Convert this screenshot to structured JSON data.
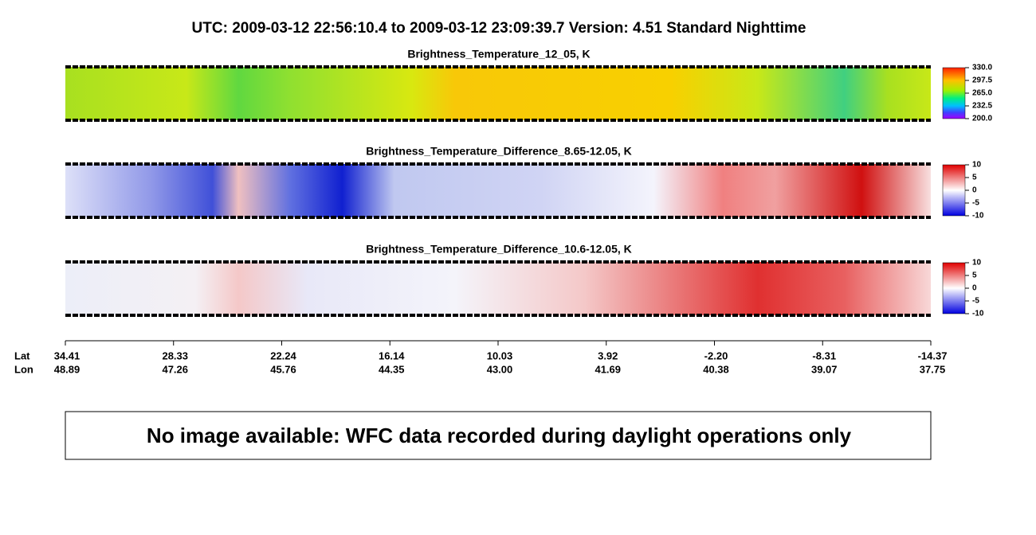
{
  "header": {
    "title": "UTC:  2009-03-12   22:56:10.4  to  2009-03-12   23:09:39.7    Version: 4.51  Standard Nighttime"
  },
  "panels": [
    {
      "title": "Brightness_Temperature_12_05, K",
      "colorbar": {
        "lim": [
          200,
          330
        ],
        "ticks": [
          {
            "value": 330,
            "label": "330.0"
          },
          {
            "value": 297.5,
            "label": "297.5"
          },
          {
            "value": 265,
            "label": "265.0"
          },
          {
            "value": 232.5,
            "label": "232.5"
          },
          {
            "value": 200,
            "label": "200.0"
          }
        ]
      }
    },
    {
      "title": "Brightness_Temperature_Difference_8.65-12.05, K",
      "colorbar": {
        "lim": [
          -10,
          10
        ],
        "ticks": [
          10,
          5,
          0,
          -5,
          -10
        ]
      }
    },
    {
      "title": "Brightness_Temperature_Difference_10.6-12.05, K",
      "colorbar": {
        "lim": [
          -10,
          10
        ],
        "ticks": [
          10,
          5,
          0,
          -5,
          -10
        ]
      }
    }
  ],
  "axis": {
    "lat_label": "Lat",
    "lon_label": "Lon",
    "lat": [
      34.41,
      28.33,
      22.24,
      16.14,
      10.03,
      3.92,
      {
        "value": -2.2,
        "label": "-2.20"
      },
      -8.31,
      -14.37
    ],
    "lon": [
      48.89,
      47.26,
      45.76,
      44.35,
      {
        "value": 43,
        "label": "43.00"
      },
      41.69,
      40.38,
      39.07,
      37.75
    ]
  },
  "notice": "No image available: WFC data recorded during daylight operations only"
}
